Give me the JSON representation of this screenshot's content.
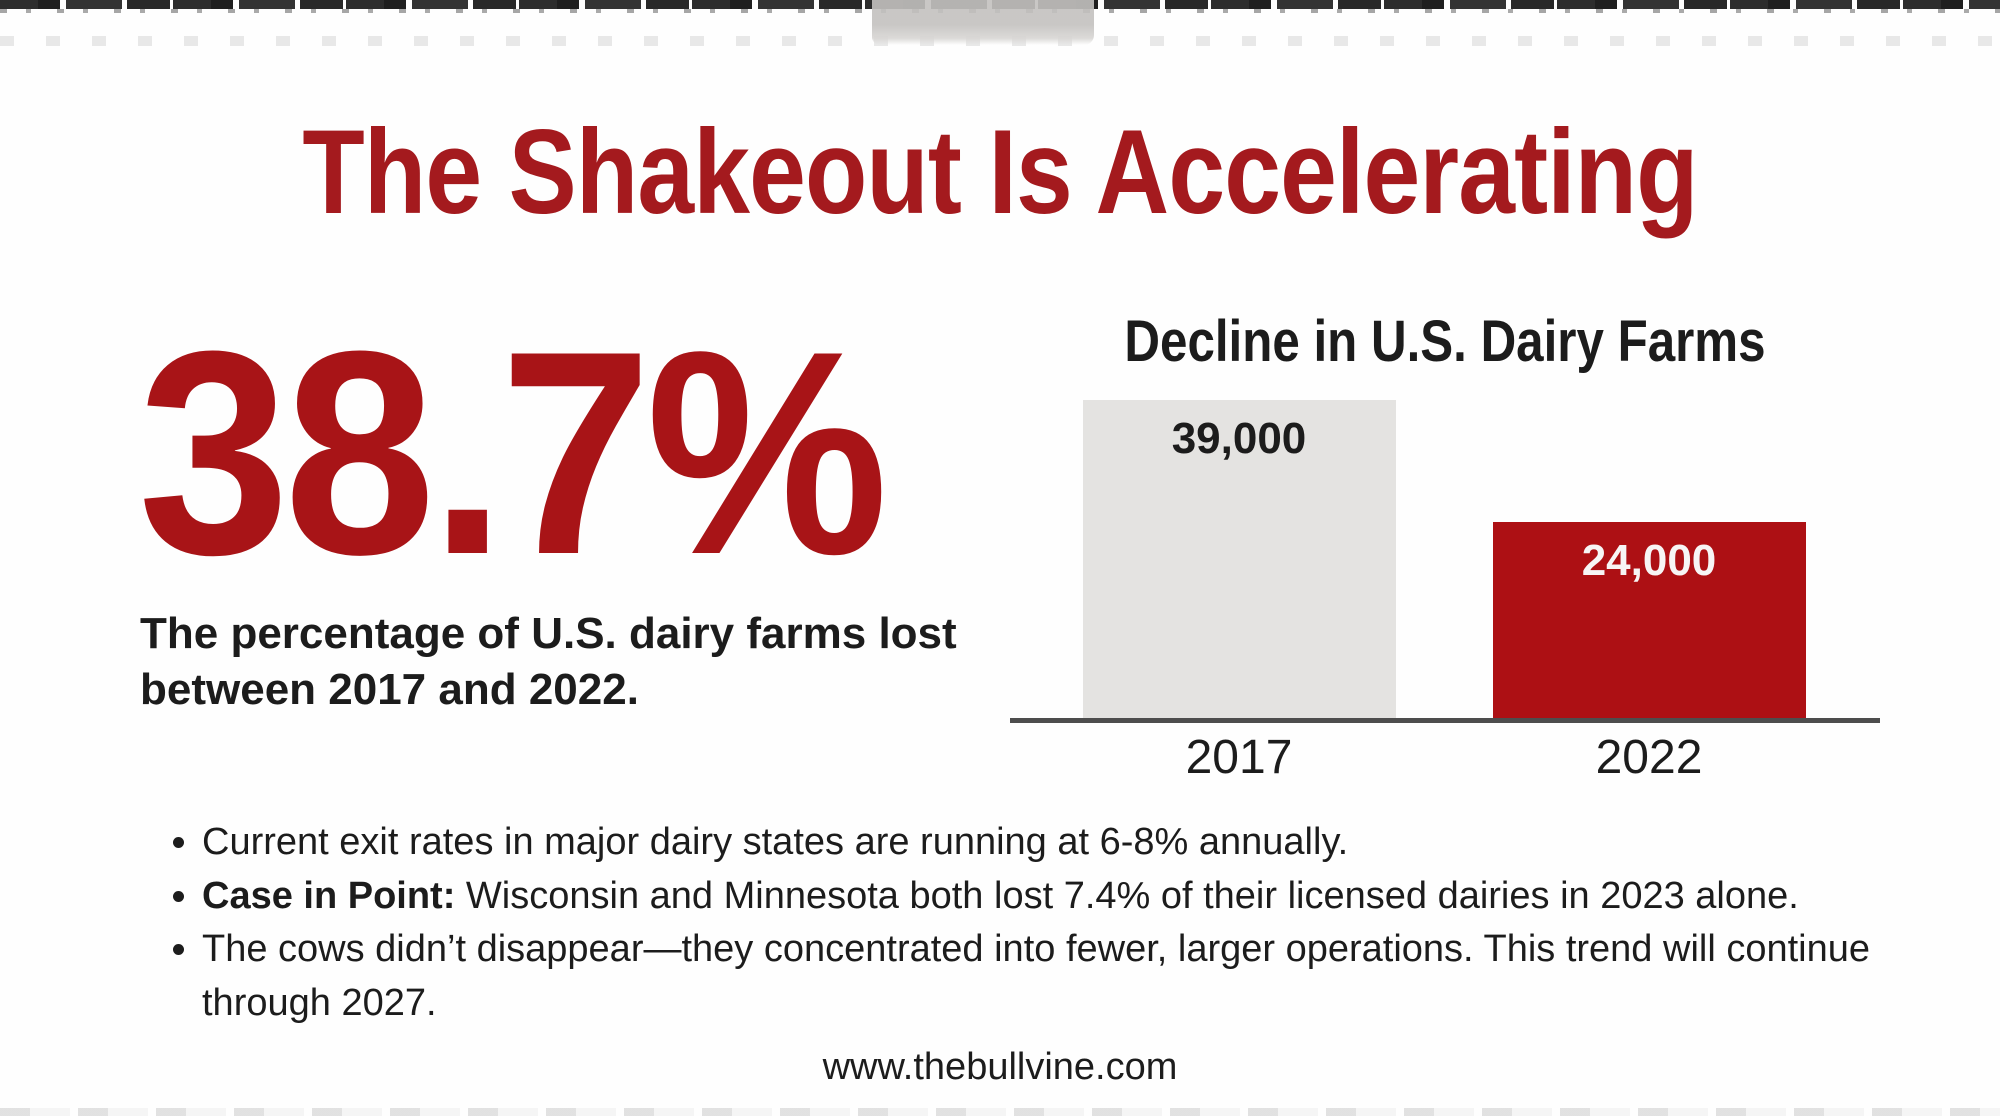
{
  "colors": {
    "accent_red": "#a41a1e",
    "stat_red": "#a81417",
    "bar_red": "#ad1014",
    "bar_gray": "#e4e3e1",
    "axis_gray": "#4d4d4d",
    "text_black": "#1c1c1c",
    "background": "#fefefe"
  },
  "title": "The Shakeout Is Accelerating",
  "stat": {
    "value": "38.7%",
    "caption": "The percentage of U.S. dairy farms lost between 2017 and 2022."
  },
  "chart_data": {
    "type": "bar",
    "title": "Decline in U.S. Dairy Farms",
    "categories": [
      "2017",
      "2022"
    ],
    "values": [
      39000,
      24000
    ],
    "value_labels": [
      "39,000",
      "24,000"
    ],
    "bar_colors": [
      "#e4e3e1",
      "#ad1014"
    ],
    "value_label_colors": [
      "#1c1c1c",
      "#f7f5f5"
    ],
    "ylim": [
      0,
      39000
    ],
    "xlabel": "",
    "ylabel": "",
    "grid": false,
    "legend": false
  },
  "bullets": [
    {
      "lead": "",
      "text": "Current exit rates in major dairy states are running at 6-8% annually."
    },
    {
      "lead": "Case in Point:",
      "text": " Wisconsin and Minnesota both lost 7.4% of their licensed dairies in 2023 alone."
    },
    {
      "lead": "",
      "text": "The cows didn’t disappear—they concentrated into fewer, larger operations. This trend will continue through 2027."
    }
  ],
  "footer": {
    "url": "www.thebullvine.com"
  }
}
